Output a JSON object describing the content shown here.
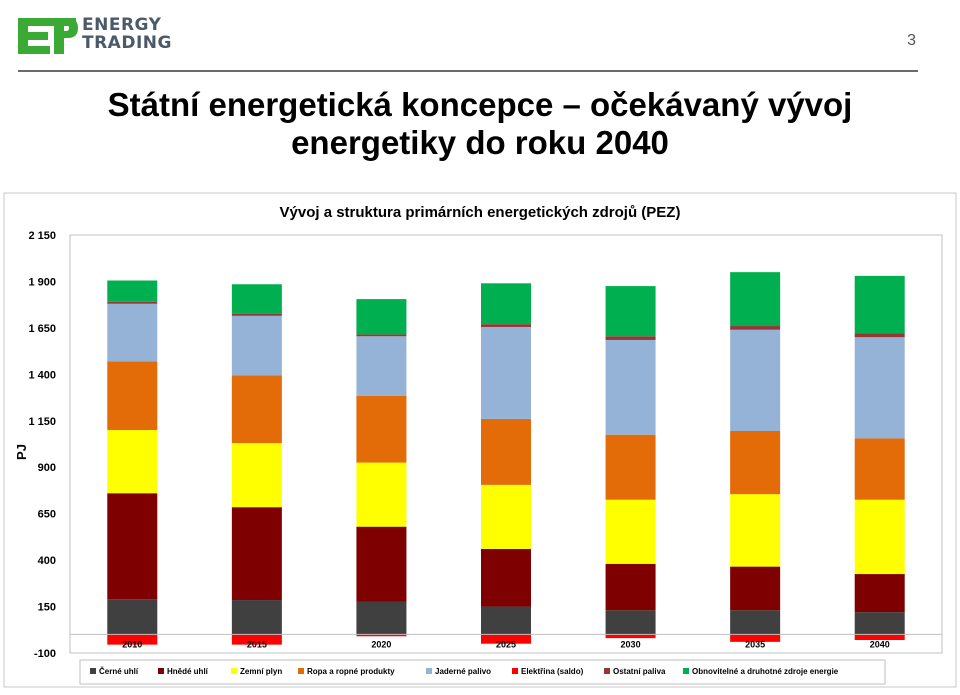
{
  "header": {
    "brand_line1": "ENERGY",
    "brand_line2": "TRADING",
    "page_number": "3",
    "title_line1": "Státní energetická koncepce – očekávaný vývoj",
    "title_line2": "energetiky do roku 2040"
  },
  "colors": {
    "logo_green": "#3aaa35",
    "brand_text": "#4b5a6a"
  },
  "chart_data": {
    "type": "bar",
    "stacked": true,
    "title": "Vývoj  a struktura primárních energetických zdrojů (PEZ)",
    "ylabel": "PJ",
    "ylim": [
      -100,
      2150
    ],
    "yticks": [
      2150,
      1900,
      1650,
      1400,
      1150,
      900,
      650,
      400,
      150,
      -100
    ],
    "ytick_labels": [
      "2 150",
      "1 900",
      "1 650",
      "1 400",
      "1 150",
      "900",
      "650",
      "400",
      "150",
      "-100"
    ],
    "categories": [
      "2010",
      "2015",
      "2020",
      "2025",
      "2030",
      "2035",
      "2040"
    ],
    "legend_position": "bottom",
    "series": [
      {
        "name": "Černé uhlí",
        "color": "#404040",
        "values": [
          190,
          185,
          175,
          150,
          130,
          130,
          120
        ]
      },
      {
        "name": "Hnědé uhlí",
        "color": "#7f0000",
        "values": [
          570,
          500,
          405,
          310,
          250,
          235,
          205
        ]
      },
      {
        "name": "Zemní plyn",
        "color": "#ffff00",
        "values": [
          340,
          345,
          345,
          345,
          345,
          390,
          400
        ]
      },
      {
        "name": "Ropa a ropné produkty",
        "color": "#e36c09",
        "values": [
          370,
          365,
          360,
          355,
          350,
          340,
          330
        ]
      },
      {
        "name": "Jaderné palivo",
        "color": "#95b3d7",
        "values": [
          310,
          320,
          320,
          495,
          510,
          545,
          545
        ]
      },
      {
        "name": "Elektřina (saldo)",
        "color": "#ff0000",
        "values": [
          -55,
          -55,
          -10,
          -50,
          -20,
          -40,
          -30
        ]
      },
      {
        "name": "Ostatní paliva",
        "color": "#953735",
        "values": [
          10,
          10,
          10,
          15,
          20,
          20,
          20
        ]
      },
      {
        "name": "Obnovitelné a druhotné zdroje energie",
        "color": "#00b050",
        "values": [
          115,
          160,
          190,
          220,
          270,
          290,
          310
        ]
      }
    ]
  }
}
